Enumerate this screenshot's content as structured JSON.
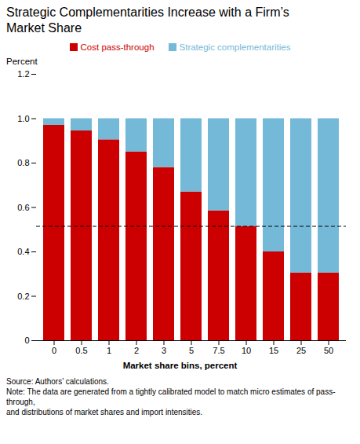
{
  "chart_data": {
    "type": "bar",
    "stacked": true,
    "title": "Strategic Complementarities Increase with a Firm’s\nMarket Share",
    "xlabel": "Market share bins, percent",
    "ylabel": "Percent",
    "categories": [
      "0",
      "0.5",
      "1",
      "2",
      "3",
      "5",
      "7.5",
      "10",
      "15",
      "25",
      "50"
    ],
    "series": [
      {
        "name": "Cost pass-through",
        "color": "#cc0000",
        "values": [
          0.97,
          0.945,
          0.905,
          0.85,
          0.78,
          0.67,
          0.585,
          0.515,
          0.4,
          0.305,
          0.305
        ]
      },
      {
        "name": "Strategic complementarities",
        "color": "#74b9d8",
        "values": [
          0.03,
          0.055,
          0.095,
          0.15,
          0.22,
          0.33,
          0.415,
          0.485,
          0.6,
          0.695,
          0.695
        ]
      }
    ],
    "hline": 0.515,
    "ylim": [
      0,
      1.2
    ],
    "yticks": [
      0,
      0.2,
      0.4,
      0.6,
      0.8,
      {
        "value": 1.0,
        "label": "1.0"
      },
      1.2
    ],
    "grid": false,
    "legend": "top",
    "source": "Source: Authors’ calculations.",
    "note": "Note: The data are generated from a tightly calibrated model to match micro estimates of pass-through,\nand distributions of market shares and import intensities."
  }
}
